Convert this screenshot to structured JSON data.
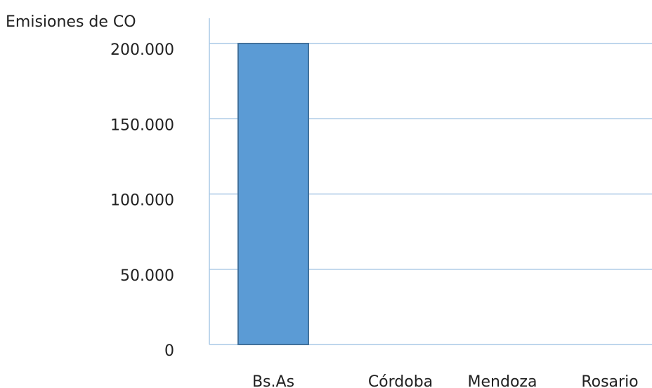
{
  "chart_data": {
    "type": "bar",
    "ylabel": "Emisiones de CO",
    "categories": [
      "Bs.As",
      "Córdoba",
      "Mendoza",
      "Rosario"
    ],
    "values": [
      200000,
      0,
      0,
      0
    ],
    "ylim": [
      0,
      200000
    ],
    "yticks": [
      0,
      50000,
      100000,
      150000,
      200000
    ],
    "ytick_labels": [
      "0",
      "50.000",
      "100.000",
      "150.000",
      "200.000"
    ],
    "grid": true,
    "colors": {
      "bar": "#5b9bd5",
      "bar_edge": "#41719c",
      "grid": "#a9c8e6"
    }
  }
}
